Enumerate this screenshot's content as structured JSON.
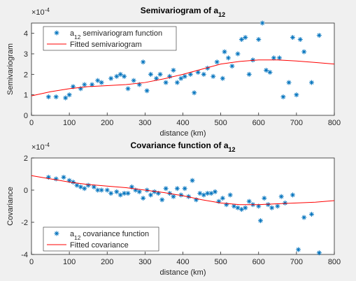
{
  "chart_data": [
    {
      "type": "scatter",
      "title": [
        "Semivariogram of a",
        "12"
      ],
      "multiplier": [
        "×10",
        "-4"
      ],
      "xlabel": "distance (km)",
      "ylabel": "Semivariogram",
      "xlim": [
        0,
        800
      ],
      "xticks": [
        0,
        100,
        200,
        300,
        400,
        500,
        600,
        700,
        800
      ],
      "ylim": [
        0,
        4.5
      ],
      "yticks": [
        0,
        1,
        2,
        3,
        4
      ],
      "legend": "northwest",
      "series": [
        {
          "name": [
            "a",
            "12",
            " semivariogram function"
          ],
          "style": "markers",
          "color": "#0072bd",
          "x": [
            45,
            65,
            90,
            100,
            110,
            130,
            140,
            160,
            175,
            185,
            210,
            225,
            235,
            245,
            255,
            270,
            285,
            295,
            305,
            315,
            330,
            340,
            355,
            365,
            375,
            385,
            395,
            405,
            420,
            430,
            440,
            455,
            465,
            480,
            490,
            505,
            510,
            520,
            530,
            545,
            555,
            565,
            575,
            585,
            600,
            610,
            620,
            630,
            640,
            655,
            665,
            680,
            690,
            700,
            710,
            720,
            740,
            760
          ],
          "values": [
            0.9,
            0.9,
            0.85,
            1.0,
            1.4,
            1.3,
            1.5,
            1.5,
            1.7,
            1.6,
            1.8,
            1.9,
            2.0,
            1.9,
            1.3,
            1.7,
            1.5,
            2.6,
            1.2,
            2.0,
            1.8,
            2.0,
            1.6,
            1.9,
            2.2,
            1.6,
            1.8,
            1.9,
            2.0,
            1.1,
            2.1,
            2.0,
            2.3,
            1.9,
            2.6,
            1.8,
            3.1,
            2.8,
            2.4,
            3.0,
            3.7,
            3.8,
            2.0,
            2.7,
            3.7,
            4.5,
            2.2,
            2.1,
            2.8,
            2.8,
            0.9,
            1.6,
            3.8,
            1.0,
            3.7,
            3.1,
            1.6,
            3.9
          ]
        },
        {
          "name": [
            "Fitted semivariogram"
          ],
          "style": "line",
          "color": "#ff0000",
          "x": [
            0,
            50,
            100,
            150,
            200,
            250,
            300,
            350,
            400,
            450,
            500,
            550,
            600,
            650,
            700,
            750,
            800
          ],
          "values": [
            0.95,
            1.15,
            1.3,
            1.4,
            1.45,
            1.5,
            1.6,
            1.78,
            2.0,
            2.25,
            2.5,
            2.63,
            2.7,
            2.7,
            2.65,
            2.58,
            2.5
          ]
        }
      ]
    },
    {
      "type": "scatter",
      "title": [
        "Covariance function of a",
        "12"
      ],
      "multiplier": [
        "×10",
        "-4"
      ],
      "xlabel": "distance (km)",
      "ylabel": "Covariance",
      "xlim": [
        0,
        800
      ],
      "xticks": [
        0,
        100,
        200,
        300,
        400,
        500,
        600,
        700,
        800
      ],
      "ylim": [
        -4,
        2
      ],
      "yticks": [
        -4,
        -2,
        0,
        2
      ],
      "legend": "southwest",
      "series": [
        {
          "name": [
            "a",
            "12",
            " covariance function"
          ],
          "style": "markers",
          "color": "#0072bd",
          "x": [
            45,
            65,
            85,
            100,
            110,
            120,
            130,
            140,
            150,
            165,
            175,
            185,
            200,
            210,
            225,
            235,
            245,
            255,
            265,
            275,
            285,
            295,
            305,
            315,
            325,
            335,
            345,
            355,
            365,
            375,
            385,
            395,
            405,
            415,
            425,
            435,
            445,
            455,
            465,
            475,
            485,
            495,
            505,
            515,
            525,
            535,
            545,
            555,
            565,
            575,
            585,
            600,
            605,
            615,
            625,
            635,
            650,
            660,
            670,
            690,
            705,
            720,
            740,
            760
          ],
          "values": [
            0.8,
            0.7,
            0.8,
            0.6,
            0.5,
            0.3,
            0.2,
            0.1,
            0.3,
            0.2,
            0.0,
            0.0,
            0.0,
            -0.2,
            -0.1,
            -0.3,
            -0.2,
            -0.2,
            0.2,
            0.0,
            -0.1,
            -0.5,
            0.0,
            -0.3,
            -0.1,
            -0.2,
            -0.6,
            0.1,
            -0.2,
            -0.4,
            0.1,
            -0.3,
            0.1,
            -0.4,
            0.6,
            -0.6,
            -0.2,
            -0.3,
            -0.2,
            -0.2,
            -0.1,
            -0.7,
            -0.5,
            -0.9,
            -0.3,
            -1.0,
            -1.1,
            -1.2,
            -1.1,
            -0.7,
            -0.9,
            -1.0,
            -1.9,
            -0.5,
            -0.9,
            -1.1,
            -1.0,
            -0.4,
            -0.8,
            -0.3,
            -3.7,
            -1.7,
            -1.5,
            -3.9
          ]
        },
        {
          "name": [
            "Fitted covariance"
          ],
          "style": "line",
          "color": "#ff0000",
          "x": [
            0,
            50,
            100,
            150,
            200,
            250,
            300,
            350,
            400,
            450,
            500,
            550,
            600,
            650,
            700,
            750,
            800
          ],
          "values": [
            0.9,
            0.7,
            0.5,
            0.35,
            0.25,
            0.15,
            0.0,
            -0.15,
            -0.35,
            -0.6,
            -0.8,
            -0.9,
            -0.9,
            -0.85,
            -0.8,
            -0.75,
            -0.65
          ]
        }
      ]
    }
  ]
}
